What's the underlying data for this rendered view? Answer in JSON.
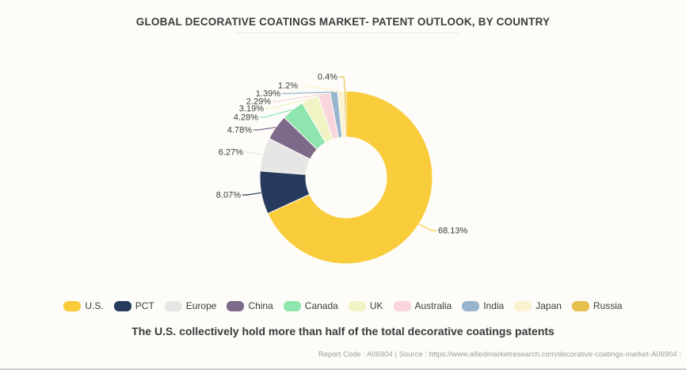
{
  "title": "GLOBAL DECORATIVE COATINGS MARKET- PATENT OUTLOOK, BY COUNTRY",
  "caption": "The U.S. collectively hold more than half of the total decorative coatings patents",
  "footer": "Report Code : A06904  |  Source : https://www.alliedmarketresearch.com/decorative-coatings-market-A06904 :",
  "chart_data": {
    "type": "pie",
    "subtype": "donut",
    "title": "GLOBAL DECORATIVE COATINGS MARKET- PATENT OUTLOOK, BY COUNTRY",
    "categories": [
      "U.S.",
      "PCT",
      "Europe",
      "China",
      "Canada",
      "UK",
      "Australia",
      "India",
      "Japan",
      "Russia"
    ],
    "values": [
      68.13,
      8.07,
      6.27,
      4.78,
      4.28,
      3.19,
      2.29,
      1.39,
      1.2,
      0.4
    ],
    "labels": [
      "68.13%",
      "8.07%",
      "6.27%",
      "4.78%",
      "4.28%",
      "3.19%",
      "2.29%",
      "1.39%",
      "1.2%",
      "0.4%"
    ],
    "colors": [
      "#F9CC3B",
      "#253A5C",
      "#E7E6E4",
      "#7D6989",
      "#8FE5AE",
      "#F2F3C5",
      "#F8D6DB",
      "#99B5CE",
      "#FBF2CF",
      "#E6C04D"
    ],
    "legend_position": "bottom",
    "start_angle_deg": 0,
    "direction": "clockwise",
    "inner_radius_ratio": 0.47
  }
}
